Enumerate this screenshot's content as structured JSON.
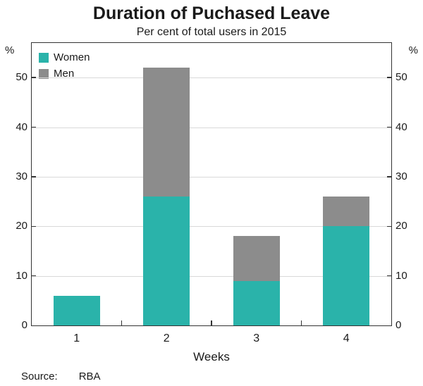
{
  "chart_data": {
    "type": "bar",
    "stacked": true,
    "title": "Duration of Puchased Leave",
    "subtitle": "Per cent of total users in 2015",
    "categories": [
      "1",
      "2",
      "3",
      "4"
    ],
    "series": [
      {
        "name": "Women",
        "color": "#2ab3aa",
        "values": [
          6,
          26,
          9,
          20
        ]
      },
      {
        "name": "Men",
        "color": "#8c8c8c",
        "values": [
          0,
          26,
          9,
          6
        ]
      }
    ],
    "totals": [
      6,
      52,
      18,
      26
    ],
    "xlabel": "Weeks",
    "ylabel_left": "%",
    "ylabel_right": "%",
    "yticks": [
      0,
      10,
      20,
      30,
      40,
      50
    ],
    "ylim": [
      0,
      57
    ],
    "grid": true,
    "legend_position": "top-left"
  },
  "footer": {
    "source_label": "Source:",
    "source_value": "RBA"
  }
}
